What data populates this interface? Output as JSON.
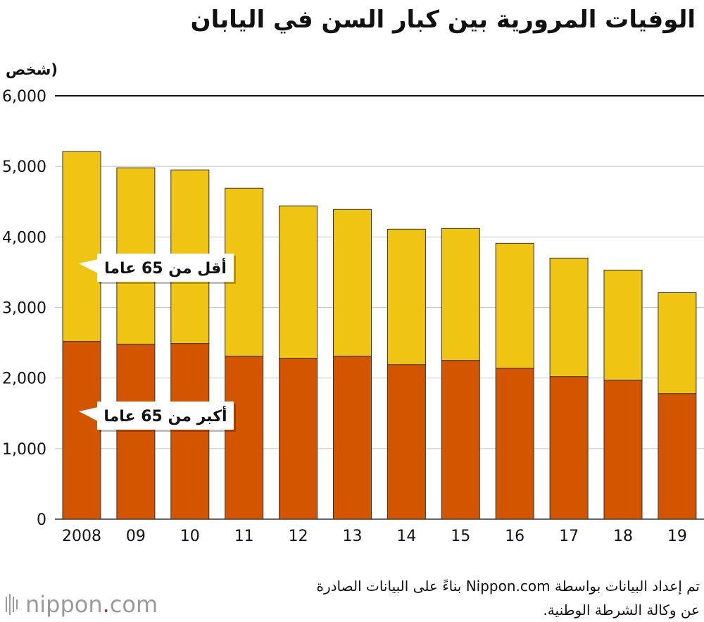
{
  "chart_data": {
    "type": "bar",
    "stacked": true,
    "title": "الوفيات المرورية بين كبار السن في اليابان",
    "ylabel": "(شخص",
    "xlabel": "",
    "categories": [
      "2008",
      "09",
      "10",
      "11",
      "12",
      "13",
      "14",
      "15",
      "16",
      "17",
      "18",
      "19"
    ],
    "ylim": [
      0,
      6000
    ],
    "yticks": [
      0,
      1000,
      2000,
      3000,
      4000,
      5000,
      6000
    ],
    "ytick_labels": [
      "0",
      "1,000",
      "2,000",
      "3,000",
      "4,000",
      "5,000",
      "6,000"
    ],
    "series": [
      {
        "name": "أكبر من 65 عاما",
        "color": "#d45500",
        "values": [
          2520,
          2480,
          2490,
          2310,
          2280,
          2310,
          2190,
          2250,
          2140,
          2020,
          1970,
          1780
        ]
      },
      {
        "name": "أقل من 65 عاما",
        "color": "#f0c412",
        "values": [
          2690,
          2500,
          2460,
          2380,
          2160,
          2080,
          1920,
          1870,
          1770,
          1680,
          1560,
          1430
        ]
      }
    ],
    "legend_placement": "inside-left",
    "grid": true
  },
  "source": {
    "line1": "تم إعداد البيانات بواسطة Nippon.com بناءً على البيانات الصادرة",
    "line2": "عن وكالة الشرطة الوطنية."
  },
  "logo": {
    "name": "nippon",
    "dot": ".",
    "suffix": "com",
    "icon": "nippon-seal-icon"
  }
}
